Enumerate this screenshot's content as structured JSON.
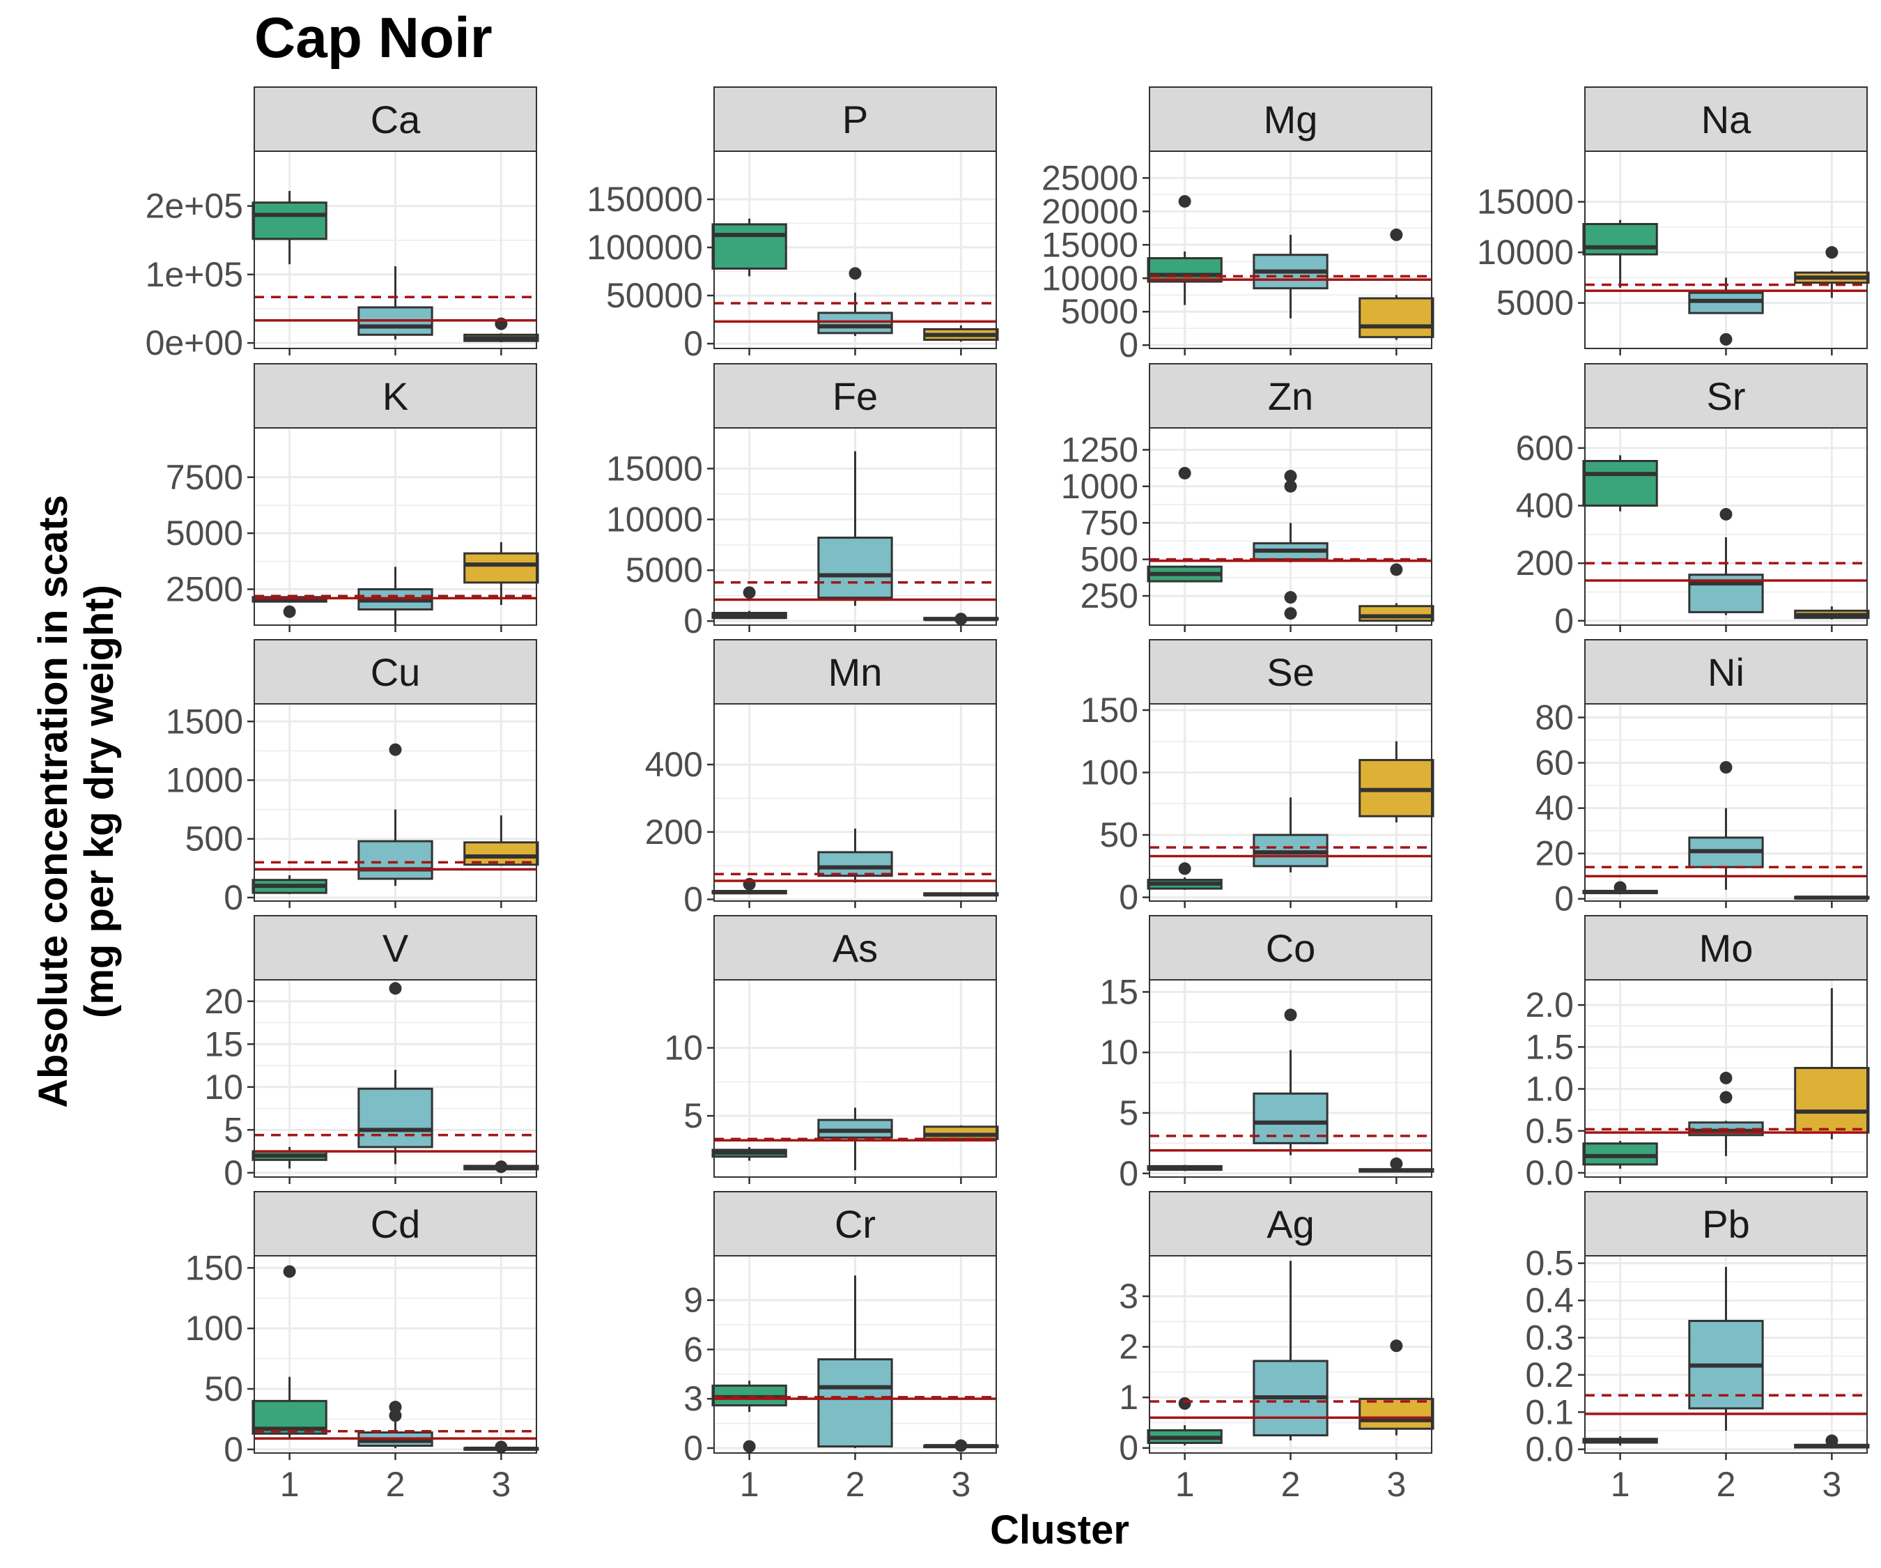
{
  "colors": {
    "cluster": [
      "#3aa57a",
      "#7dbdc6",
      "#ddb136"
    ],
    "ref_line": "#a31515",
    "strip_bg": "#d9d9d9",
    "grid": "#ebebeb",
    "box_outline": "#333333"
  },
  "chart_data": {
    "type": "box",
    "title": "Cap Noir",
    "xlabel": "Cluster",
    "ylabel": [
      "Absolute concentration in scats",
      "(mg per kg dry weight)"
    ],
    "categories": [
      "1",
      "2",
      "3"
    ],
    "reference_lines": {
      "solid": "horizontal reference value (solid dark red line)",
      "dashed": "horizontal reference value (dashed dark red line)"
    },
    "panels": [
      {
        "element": "Ca",
        "ylim": [
          -8000,
          280000
        ],
        "ticks": [
          0,
          100000,
          200000
        ],
        "tick_labels": [
          "0e+00",
          "1e+05",
          "2e+05"
        ],
        "solid": 33000,
        "dashed": 67000,
        "boxes": [
          {
            "lo": 115000,
            "q1": 152000,
            "med": 187000,
            "q3": 205000,
            "hi": 222000,
            "outliers": []
          },
          {
            "lo": 5000,
            "q1": 12000,
            "med": 24000,
            "q3": 52000,
            "hi": 112000,
            "outliers": []
          },
          {
            "lo": 1000,
            "q1": 3000,
            "med": 7000,
            "q3": 12000,
            "hi": 14000,
            "outliers": [
              28000
            ]
          }
        ]
      },
      {
        "element": "P",
        "ylim": [
          -5000,
          200000
        ],
        "ticks": [
          0,
          50000,
          100000,
          150000
        ],
        "tick_labels": [
          "0",
          "50000",
          "100000",
          "150000"
        ],
        "solid": 23000,
        "dashed": 42000,
        "boxes": [
          {
            "lo": 70000,
            "q1": 78000,
            "med": 113000,
            "q3": 124000,
            "hi": 130000,
            "outliers": []
          },
          {
            "lo": 8000,
            "q1": 11000,
            "med": 18000,
            "q3": 32000,
            "hi": 53000,
            "outliers": [
              73000
            ]
          },
          {
            "lo": 2000,
            "q1": 4000,
            "med": 9000,
            "q3": 15000,
            "hi": 19000,
            "outliers": []
          }
        ]
      },
      {
        "element": "Mg",
        "ylim": [
          -500,
          29000
        ],
        "ticks": [
          0,
          5000,
          10000,
          15000,
          20000,
          25000
        ],
        "tick_labels": [
          "0",
          "5000",
          "10000",
          "15000",
          "20000",
          "25000"
        ],
        "solid": 9800,
        "dashed": 10300,
        "boxes": [
          {
            "lo": 6000,
            "q1": 9500,
            "med": 10500,
            "q3": 13000,
            "hi": 14000,
            "outliers": [
              21500
            ]
          },
          {
            "lo": 4000,
            "q1": 8500,
            "med": 11000,
            "q3": 13500,
            "hi": 16500,
            "outliers": []
          },
          {
            "lo": 800,
            "q1": 1200,
            "med": 2800,
            "q3": 7000,
            "hi": 7500,
            "outliers": [
              16500
            ]
          }
        ]
      },
      {
        "element": "Na",
        "ylim": [
          500,
          20000
        ],
        "ticks": [
          5000,
          10000,
          15000
        ],
        "tick_labels": [
          "5000",
          "10000",
          "15000"
        ],
        "solid": 6200,
        "dashed": 6800,
        "boxes": [
          {
            "lo": 6500,
            "q1": 9800,
            "med": 10500,
            "q3": 12800,
            "hi": 13200,
            "outliers": []
          },
          {
            "lo": 4000,
            "q1": 4000,
            "med": 5200,
            "q3": 6000,
            "hi": 7500,
            "outliers": [
              1400
            ]
          },
          {
            "lo": 5500,
            "q1": 7000,
            "med": 7500,
            "q3": 8000,
            "hi": 8200,
            "outliers": [
              10000
            ]
          }
        ]
      },
      {
        "element": "K",
        "ylim": [
          900,
          9700
        ],
        "ticks": [
          2500,
          5000,
          7500
        ],
        "tick_labels": [
          "2500",
          "5000",
          "7500"
        ],
        "solid": 2100,
        "dashed": 2200,
        "boxes": [
          {
            "lo": 1900,
            "q1": 1950,
            "med": 2050,
            "q3": 2150,
            "hi": 2200,
            "outliers": [
              1500
            ]
          },
          {
            "lo": 900,
            "q1": 1600,
            "med": 2000,
            "q3": 2500,
            "hi": 3500,
            "outliers": []
          },
          {
            "lo": 1800,
            "q1": 2800,
            "med": 3600,
            "q3": 4100,
            "hi": 4600,
            "outliers": []
          }
        ]
      },
      {
        "element": "Fe",
        "ylim": [
          -400,
          19000
        ],
        "ticks": [
          0,
          5000,
          10000,
          15000
        ],
        "tick_labels": [
          "0",
          "5000",
          "10000",
          "15000"
        ],
        "solid": 2100,
        "dashed": 3800,
        "boxes": [
          {
            "lo": 200,
            "q1": 300,
            "med": 500,
            "q3": 800,
            "hi": 1000,
            "outliers": [
              2800
            ]
          },
          {
            "lo": 1500,
            "q1": 2300,
            "med": 4500,
            "q3": 8200,
            "hi": 16700,
            "outliers": []
          },
          {
            "lo": 100,
            "q1": 150,
            "med": 200,
            "q3": 300,
            "hi": 350,
            "outliers": [
              200
            ]
          }
        ]
      },
      {
        "element": "Zn",
        "ylim": [
          50,
          1400
        ],
        "ticks": [
          250,
          500,
          750,
          1000,
          1250
        ],
        "tick_labels": [
          "250",
          "500",
          "750",
          "1000",
          "1250"
        ],
        "solid": 490,
        "dashed": 500,
        "boxes": [
          {
            "lo": 350,
            "q1": 350,
            "med": 400,
            "q3": 450,
            "hi": 460,
            "outliers": [
              1090
            ]
          },
          {
            "lo": 480,
            "q1": 500,
            "med": 560,
            "q3": 610,
            "hi": 750,
            "outliers": [
              1070,
              1000,
              240,
              130
            ]
          },
          {
            "lo": 80,
            "q1": 80,
            "med": 110,
            "q3": 180,
            "hi": 200,
            "outliers": [
              430
            ]
          }
        ]
      },
      {
        "element": "Sr",
        "ylim": [
          -15,
          670
        ],
        "ticks": [
          0,
          200,
          400,
          600
        ],
        "tick_labels": [
          "0",
          "200",
          "400",
          "600"
        ],
        "solid": 140,
        "dashed": 200,
        "boxes": [
          {
            "lo": 380,
            "q1": 400,
            "med": 510,
            "q3": 555,
            "hi": 575,
            "outliers": []
          },
          {
            "lo": 20,
            "q1": 30,
            "med": 130,
            "q3": 160,
            "hi": 290,
            "outliers": [
              370
            ]
          },
          {
            "lo": 5,
            "q1": 10,
            "med": 20,
            "q3": 35,
            "hi": 50,
            "outliers": []
          }
        ]
      },
      {
        "element": "Cu",
        "ylim": [
          -30,
          1650
        ],
        "ticks": [
          0,
          500,
          1000,
          1500
        ],
        "tick_labels": [
          "0",
          "500",
          "1000",
          "1500"
        ],
        "solid": 240,
        "dashed": 300,
        "boxes": [
          {
            "lo": 30,
            "q1": 40,
            "med": 100,
            "q3": 150,
            "hi": 190,
            "outliers": []
          },
          {
            "lo": 100,
            "q1": 160,
            "med": 240,
            "q3": 480,
            "hi": 750,
            "outliers": [
              1260
            ]
          },
          {
            "lo": 270,
            "q1": 280,
            "med": 350,
            "q3": 470,
            "hi": 700,
            "outliers": []
          }
        ]
      },
      {
        "element": "Mn",
        "ylim": [
          -5,
          580
        ],
        "ticks": [
          0,
          200,
          400
        ],
        "tick_labels": [
          "0",
          "200",
          "400"
        ],
        "solid": 55,
        "dashed": 75,
        "boxes": [
          {
            "lo": 15,
            "q1": 18,
            "med": 22,
            "q3": 25,
            "hi": 28,
            "outliers": [
              45
            ]
          },
          {
            "lo": 50,
            "q1": 70,
            "med": 95,
            "q3": 140,
            "hi": 210,
            "outliers": []
          },
          {
            "lo": 10,
            "q1": 12,
            "med": 15,
            "q3": 18,
            "hi": 20,
            "outliers": []
          }
        ]
      },
      {
        "element": "Se",
        "ylim": [
          -3,
          155
        ],
        "ticks": [
          0,
          50,
          100,
          150
        ],
        "tick_labels": [
          "0",
          "50",
          "100",
          "150"
        ],
        "solid": 33,
        "dashed": 40,
        "boxes": [
          {
            "lo": 6,
            "q1": 7,
            "med": 11,
            "q3": 14,
            "hi": 16,
            "outliers": [
              23
            ]
          },
          {
            "lo": 20,
            "q1": 25,
            "med": 36,
            "q3": 50,
            "hi": 80,
            "outliers": []
          },
          {
            "lo": 60,
            "q1": 65,
            "med": 86,
            "q3": 110,
            "hi": 125,
            "outliers": []
          }
        ]
      },
      {
        "element": "Ni",
        "ylim": [
          -1,
          86
        ],
        "ticks": [
          0,
          20,
          40,
          60,
          80
        ],
        "tick_labels": [
          "0",
          "20",
          "40",
          "60",
          "80"
        ],
        "solid": 10,
        "dashed": 14,
        "boxes": [
          {
            "lo": 2,
            "q1": 2.5,
            "med": 3,
            "q3": 3.5,
            "hi": 4,
            "outliers": [
              5
            ]
          },
          {
            "lo": 4,
            "q1": 14,
            "med": 21,
            "q3": 27,
            "hi": 40,
            "outliers": [
              58
            ]
          },
          {
            "lo": 0,
            "q1": 0.2,
            "med": 0.5,
            "q3": 0.8,
            "hi": 1,
            "outliers": []
          }
        ]
      },
      {
        "element": "V",
        "ylim": [
          -0.5,
          22.5
        ],
        "ticks": [
          0,
          5,
          10,
          15,
          20
        ],
        "tick_labels": [
          "0",
          "5",
          "10",
          "15",
          "20"
        ],
        "solid": 2.5,
        "dashed": 4.4,
        "boxes": [
          {
            "lo": 0.5,
            "q1": 1.5,
            "med": 2,
            "q3": 2.5,
            "hi": 3,
            "outliers": []
          },
          {
            "lo": 1,
            "q1": 3,
            "med": 5,
            "q3": 9.8,
            "hi": 12,
            "outliers": [
              21.5
            ]
          },
          {
            "lo": 0.3,
            "q1": 0.4,
            "med": 0.6,
            "q3": 0.8,
            "hi": 1,
            "outliers": [
              0.7
            ]
          }
        ]
      },
      {
        "element": "As",
        "ylim": [
          0.5,
          15
        ],
        "ticks": [
          5,
          10
        ],
        "tick_labels": [
          "5",
          "10"
        ],
        "solid": 3.2,
        "dashed": 3.3,
        "boxes": [
          {
            "lo": 1.7,
            "q1": 2,
            "med": 2.3,
            "q3": 2.5,
            "hi": 2.7,
            "outliers": []
          },
          {
            "lo": 1,
            "q1": 3.4,
            "med": 3.9,
            "q3": 4.7,
            "hi": 5.6,
            "outliers": []
          },
          {
            "lo": 3.2,
            "q1": 3.3,
            "med": 3.6,
            "q3": 4.2,
            "hi": 4.3,
            "outliers": []
          }
        ]
      },
      {
        "element": "Co",
        "ylim": [
          -0.3,
          16
        ],
        "ticks": [
          0,
          5,
          10,
          15
        ],
        "tick_labels": [
          "0",
          "5",
          "10",
          "15"
        ],
        "solid": 1.9,
        "dashed": 3.1,
        "boxes": [
          {
            "lo": 0.2,
            "q1": 0.3,
            "med": 0.45,
            "q3": 0.6,
            "hi": 0.7,
            "outliers": []
          },
          {
            "lo": 1.5,
            "q1": 2.5,
            "med": 4.2,
            "q3": 6.6,
            "hi": 10.2,
            "outliers": [
              13.1
            ]
          },
          {
            "lo": 0.1,
            "q1": 0.15,
            "med": 0.25,
            "q3": 0.35,
            "hi": 0.4,
            "outliers": [
              0.8
            ]
          }
        ]
      },
      {
        "element": "Mo",
        "ylim": [
          -0.05,
          2.3
        ],
        "ticks": [
          0,
          0.5,
          1,
          1.5,
          2
        ],
        "tick_labels": [
          "0.0",
          "0.5",
          "1.0",
          "1.5",
          "2.0"
        ],
        "solid": 0.48,
        "dashed": 0.52,
        "boxes": [
          {
            "lo": 0.05,
            "q1": 0.1,
            "med": 0.2,
            "q3": 0.35,
            "hi": 0.38,
            "outliers": []
          },
          {
            "lo": 0.2,
            "q1": 0.45,
            "med": 0.5,
            "q3": 0.6,
            "hi": 0.62,
            "outliers": [
              1.13,
              0.9
            ]
          },
          {
            "lo": 0.4,
            "q1": 0.48,
            "med": 0.73,
            "q3": 1.25,
            "hi": 2.2,
            "outliers": []
          }
        ]
      },
      {
        "element": "Cd",
        "ylim": [
          -3,
          160
        ],
        "ticks": [
          0,
          50,
          100,
          150
        ],
        "tick_labels": [
          "0",
          "50",
          "100",
          "150"
        ],
        "solid": 9,
        "dashed": 15,
        "boxes": [
          {
            "lo": 10,
            "q1": 13,
            "med": 17,
            "q3": 40,
            "hi": 60,
            "outliers": [
              147
            ]
          },
          {
            "lo": 1,
            "q1": 3,
            "med": 7,
            "q3": 14,
            "hi": 23,
            "outliers": [
              35,
              28
            ]
          },
          {
            "lo": 0,
            "q1": 0.2,
            "med": 0.5,
            "q3": 1,
            "hi": 1.5,
            "outliers": [
              2
            ]
          }
        ]
      },
      {
        "element": "Cr",
        "ylim": [
          -0.3,
          11.7
        ],
        "ticks": [
          0,
          3,
          6,
          9
        ],
        "tick_labels": [
          "0",
          "3",
          "6",
          "9"
        ],
        "solid": 3.0,
        "dashed": 3.1,
        "boxes": [
          {
            "lo": 2.2,
            "q1": 2.6,
            "med": 3.1,
            "q3": 3.8,
            "hi": 4.1,
            "outliers": [
              0.1
            ]
          },
          {
            "lo": 0,
            "q1": 0.1,
            "med": 3.7,
            "q3": 5.4,
            "hi": 10.5,
            "outliers": []
          },
          {
            "lo": 0.05,
            "q1": 0.08,
            "med": 0.12,
            "q3": 0.15,
            "hi": 0.18,
            "outliers": [
              0.15
            ]
          }
        ]
      },
      {
        "element": "Ag",
        "ylim": [
          -0.1,
          3.8
        ],
        "ticks": [
          0,
          1,
          2,
          3
        ],
        "tick_labels": [
          "0",
          "1",
          "2",
          "3"
        ],
        "solid": 0.6,
        "dashed": 0.92,
        "boxes": [
          {
            "lo": 0.05,
            "q1": 0.1,
            "med": 0.2,
            "q3": 0.35,
            "hi": 0.45,
            "outliers": [
              0.88
            ]
          },
          {
            "lo": 0.15,
            "q1": 0.25,
            "med": 1.0,
            "q3": 1.72,
            "hi": 3.7,
            "outliers": []
          },
          {
            "lo": 0.25,
            "q1": 0.38,
            "med": 0.55,
            "q3": 0.97,
            "hi": 0.98,
            "outliers": [
              2.02
            ]
          }
        ]
      },
      {
        "element": "Pb",
        "ylim": [
          -0.01,
          0.52
        ],
        "ticks": [
          0,
          0.1,
          0.2,
          0.3,
          0.4,
          0.5
        ],
        "tick_labels": [
          "0.0",
          "0.1",
          "0.2",
          "0.3",
          "0.4",
          "0.5"
        ],
        "solid": 0.095,
        "dashed": 0.145,
        "boxes": [
          {
            "lo": 0.01,
            "q1": 0.018,
            "med": 0.022,
            "q3": 0.028,
            "hi": 0.035,
            "outliers": []
          },
          {
            "lo": 0.05,
            "q1": 0.11,
            "med": 0.225,
            "q3": 0.345,
            "hi": 0.49,
            "outliers": []
          },
          {
            "lo": 0.002,
            "q1": 0.005,
            "med": 0.008,
            "q3": 0.012,
            "hi": 0.014,
            "outliers": [
              0.023
            ]
          }
        ]
      }
    ]
  }
}
